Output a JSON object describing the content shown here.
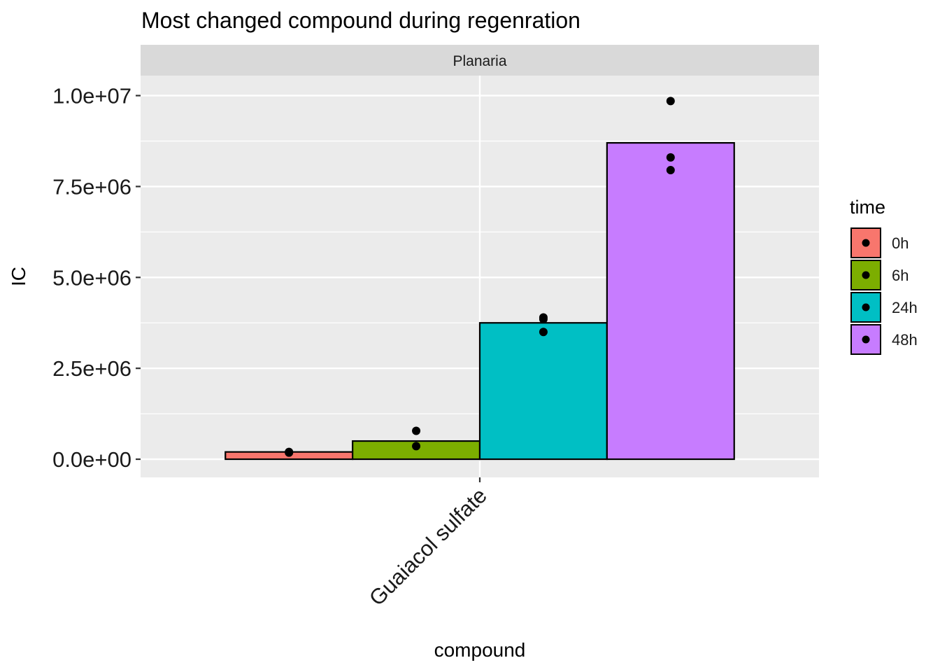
{
  "chart_data": {
    "type": "bar",
    "title": "Most changed compound during regenration",
    "facet": "Planaria",
    "xlabel": "compound",
    "ylabel": "IC",
    "categories": [
      "Guaiacol sulfate"
    ],
    "ylim": [
      -500000,
      10550000
    ],
    "yticks": [
      0,
      2500000,
      5000000,
      7500000,
      10000000
    ],
    "ytick_labels": [
      "0.0e+00",
      "2.5e+06",
      "5.0e+06",
      "7.5e+06",
      "1.0e+07"
    ],
    "grid": true,
    "legend": {
      "title": "time",
      "position": "right"
    },
    "series": [
      {
        "name": "0h",
        "color": "#F8766D",
        "values": [
          200000
        ],
        "points": [
          200000,
          180000
        ]
      },
      {
        "name": "6h",
        "color": "#7CAE00",
        "values": [
          500000
        ],
        "points": [
          780000,
          360000
        ]
      },
      {
        "name": "24h",
        "color": "#00BFC4",
        "values": [
          3750000
        ],
        "points": [
          3900000,
          3850000,
          3500000
        ]
      },
      {
        "name": "48h",
        "color": "#C77CFF",
        "values": [
          8700000
        ],
        "points": [
          9850000,
          8300000,
          7950000
        ]
      }
    ]
  }
}
